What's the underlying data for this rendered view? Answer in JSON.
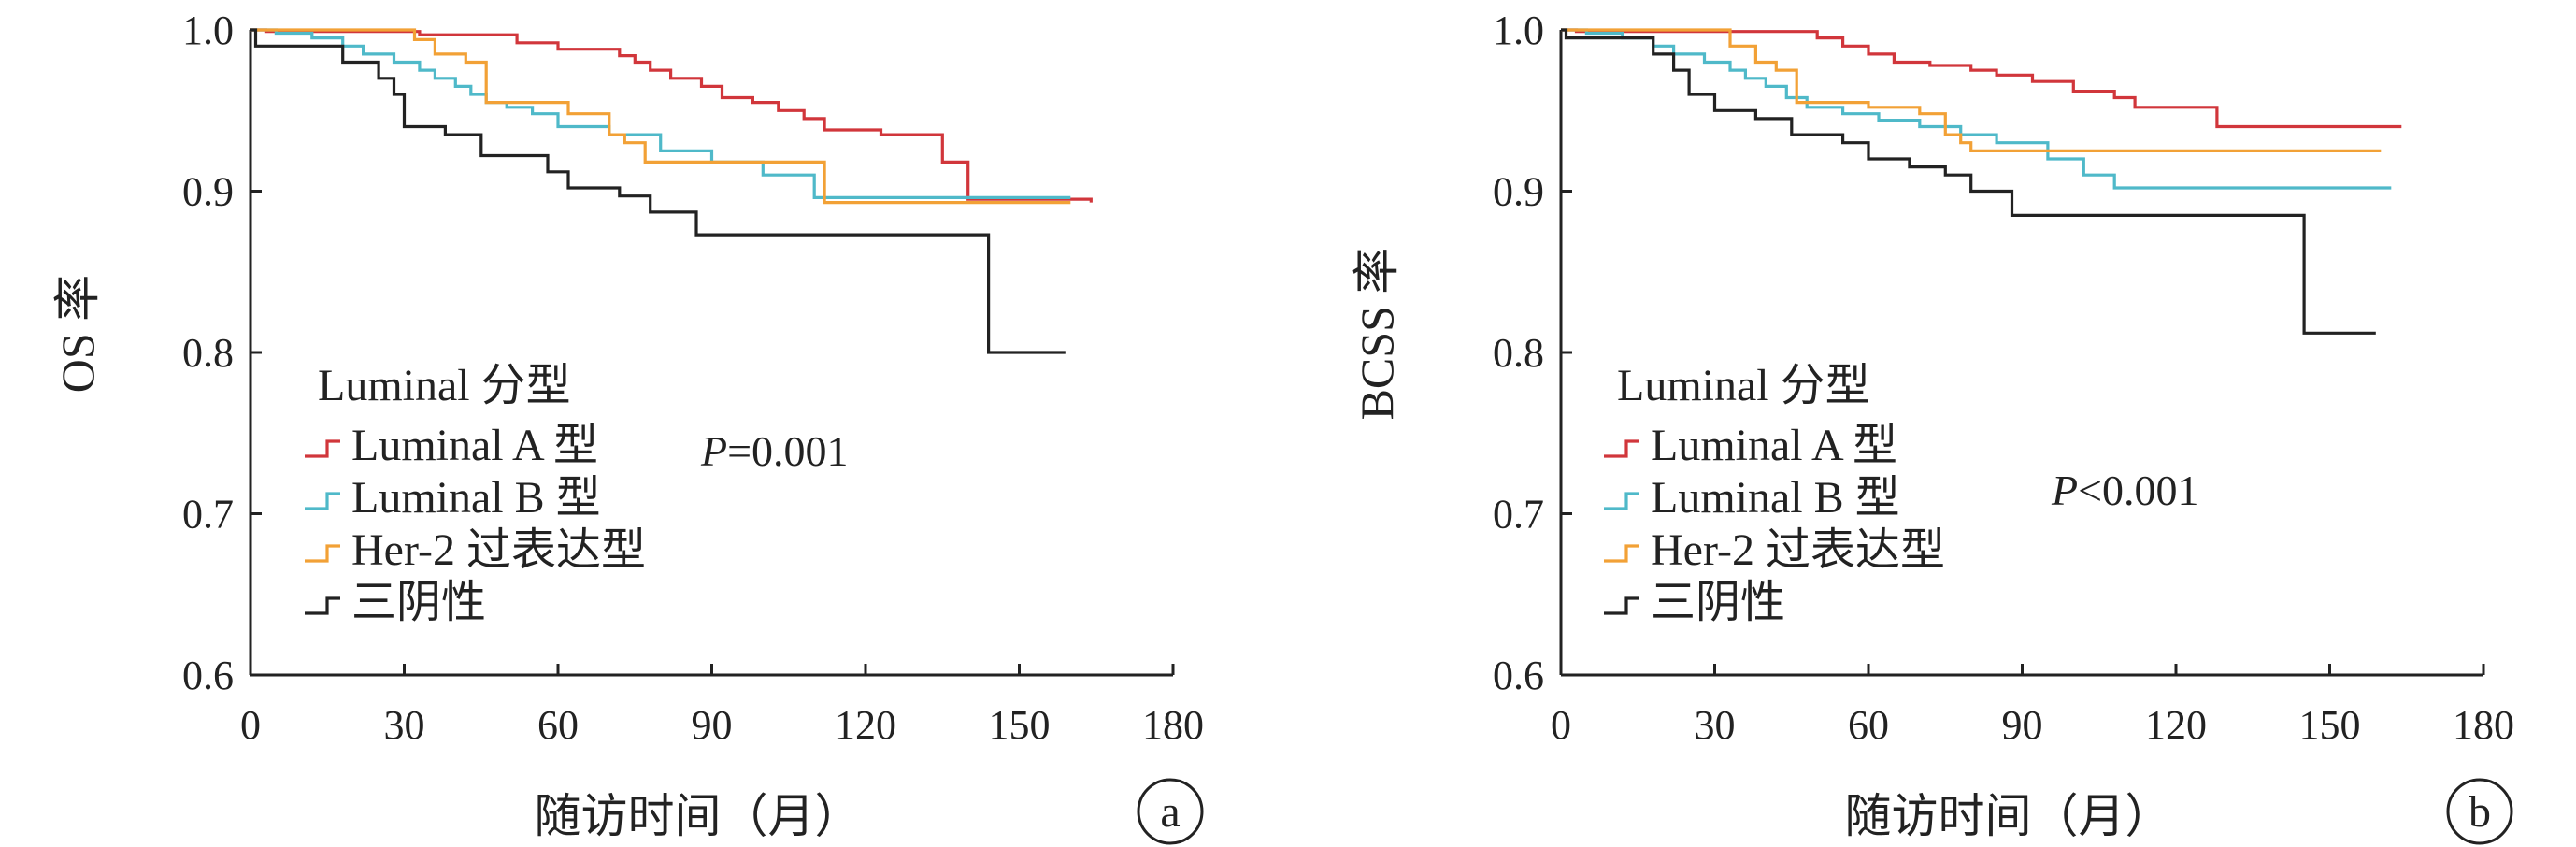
{
  "chart_data": [
    {
      "type": "line",
      "panel_label": "a",
      "xlabel": "随访时间（月）",
      "ylabel": "OS 率",
      "xlim": [
        0,
        180
      ],
      "ylim": [
        0.6,
        1.0
      ],
      "xticks": [
        "0",
        "30",
        "60",
        "90",
        "120",
        "150",
        "180"
      ],
      "yticks": [
        "0.6",
        "0.7",
        "0.8",
        "0.9",
        "1.0"
      ],
      "grid": false,
      "legend_title": "Luminal 分型",
      "legend_position": "center-left",
      "annotation": {
        "p_symbol": "P",
        "p_rest": "=0.001"
      },
      "series": [
        {
          "name": "Luminal A 型",
          "color": "#d1363b",
          "x": [
            0,
            3,
            30,
            33,
            48,
            52,
            58,
            60,
            65,
            72,
            75,
            78,
            82,
            88,
            92,
            98,
            103,
            108,
            112,
            123,
            135,
            140,
            164
          ],
          "y": [
            1.0,
            0.999,
            0.999,
            0.997,
            0.997,
            0.992,
            0.992,
            0.988,
            0.988,
            0.984,
            0.98,
            0.975,
            0.97,
            0.965,
            0.958,
            0.955,
            0.95,
            0.945,
            0.938,
            0.935,
            0.918,
            0.895,
            0.893
          ]
        },
        {
          "name": "Luminal B 型",
          "color": "#4fb9c9",
          "x": [
            0,
            5,
            12,
            18,
            22,
            28,
            33,
            36,
            40,
            43,
            46,
            50,
            55,
            60,
            70,
            80,
            90,
            100,
            110,
            160
          ],
          "y": [
            1.0,
            0.998,
            0.995,
            0.99,
            0.985,
            0.98,
            0.975,
            0.97,
            0.965,
            0.96,
            0.955,
            0.952,
            0.948,
            0.94,
            0.935,
            0.925,
            0.918,
            0.91,
            0.896,
            0.896
          ]
        },
        {
          "name": "Her-2 过表达型",
          "color": "#f2a136",
          "x": [
            0,
            30,
            32,
            36,
            42,
            46,
            50,
            62,
            70,
            73,
            77,
            105,
            112,
            160
          ],
          "y": [
            1.0,
            1.0,
            0.994,
            0.985,
            0.98,
            0.955,
            0.955,
            0.948,
            0.935,
            0.93,
            0.918,
            0.918,
            0.893,
            0.893
          ]
        },
        {
          "name": "三阴性",
          "color": "#222222",
          "x": [
            0,
            1,
            15,
            18,
            22,
            25,
            28,
            30,
            38,
            45,
            50,
            58,
            62,
            68,
            72,
            78,
            87,
            92,
            144,
            159
          ],
          "y": [
            1.0,
            0.99,
            0.99,
            0.98,
            0.98,
            0.97,
            0.96,
            0.94,
            0.935,
            0.922,
            0.922,
            0.912,
            0.902,
            0.902,
            0.897,
            0.887,
            0.873,
            0.873,
            0.8,
            0.8
          ]
        }
      ]
    },
    {
      "type": "line",
      "panel_label": "b",
      "xlabel": "随访时间（月）",
      "ylabel": "BCSS 率",
      "xlim": [
        0,
        180
      ],
      "ylim": [
        0.6,
        1.0
      ],
      "xticks": [
        "0",
        "30",
        "60",
        "90",
        "120",
        "150",
        "180"
      ],
      "yticks": [
        "0.6",
        "0.7",
        "0.8",
        "0.9",
        "1.0"
      ],
      "grid": false,
      "legend_title": "Luminal 分型",
      "legend_position": "center-left",
      "annotation": {
        "p_symbol": "P",
        "p_rest": "<0.001"
      },
      "series": [
        {
          "name": "Luminal A 型",
          "color": "#d1363b",
          "x": [
            0,
            3,
            45,
            50,
            55,
            60,
            65,
            72,
            80,
            85,
            92,
            100,
            108,
            112,
            128,
            164
          ],
          "y": [
            1.0,
            0.999,
            0.999,
            0.995,
            0.99,
            0.985,
            0.98,
            0.978,
            0.975,
            0.972,
            0.968,
            0.962,
            0.958,
            0.952,
            0.94,
            0.94
          ]
        },
        {
          "name": "Luminal B 型",
          "color": "#4fb9c9",
          "x": [
            0,
            5,
            12,
            18,
            22,
            28,
            33,
            36,
            40,
            44,
            48,
            55,
            62,
            70,
            78,
            85,
            95,
            102,
            108,
            162
          ],
          "y": [
            1.0,
            0.998,
            0.995,
            0.99,
            0.985,
            0.98,
            0.975,
            0.97,
            0.965,
            0.958,
            0.952,
            0.948,
            0.944,
            0.94,
            0.935,
            0.93,
            0.92,
            0.91,
            0.902,
            0.902
          ]
        },
        {
          "name": "Her-2 过表达型",
          "color": "#f2a136",
          "x": [
            0,
            30,
            33,
            38,
            42,
            46,
            60,
            70,
            75,
            78,
            80,
            160
          ],
          "y": [
            1.0,
            1.0,
            0.99,
            0.98,
            0.975,
            0.955,
            0.952,
            0.948,
            0.935,
            0.93,
            0.925,
            0.925
          ]
        },
        {
          "name": "三阴性",
          "color": "#222222",
          "x": [
            0,
            1,
            15,
            18,
            22,
            25,
            30,
            38,
            45,
            55,
            60,
            68,
            75,
            80,
            88,
            145,
            159
          ],
          "y": [
            1.0,
            0.995,
            0.995,
            0.985,
            0.975,
            0.96,
            0.95,
            0.945,
            0.935,
            0.93,
            0.92,
            0.915,
            0.91,
            0.9,
            0.885,
            0.812,
            0.812
          ]
        }
      ]
    }
  ]
}
